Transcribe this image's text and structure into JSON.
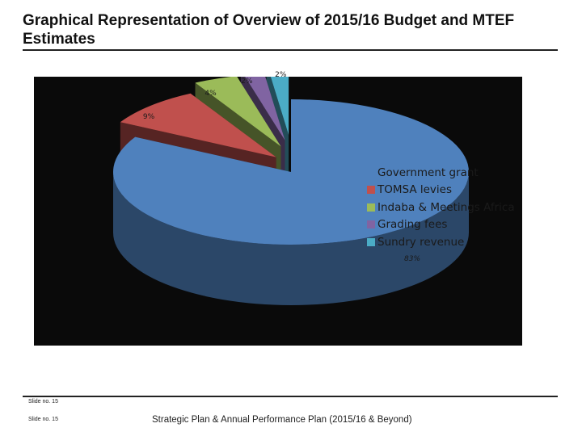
{
  "slide": {
    "title": "Graphical Representation of Overview of 2015/16 Budget and MTEF\nEstimates",
    "slide_number_top": "Slide no. 15",
    "slide_number_bottom": "Slide no. 15",
    "footer": "Strategic Plan & Annual Performance Plan (2015/16 & Beyond)"
  },
  "chart_data": {
    "type": "pie",
    "style": "3d-exploded",
    "title": "",
    "legend_position": "right",
    "slices": [
      {
        "label": "Government grant",
        "value": 83,
        "label_text": "83%",
        "color": "#4f81bd"
      },
      {
        "label": "TOMSA levies",
        "value": 9,
        "label_text": "9%",
        "color": "#c0504d"
      },
      {
        "label": "Indaba & Meetings Africa",
        "value": 4,
        "label_text": "4%",
        "color": "#9bbb59"
      },
      {
        "label": "Grading fees",
        "value": 2,
        "label_text": "2%",
        "color": "#8064a2"
      },
      {
        "label": "Sundry revenue",
        "value": 2,
        "label_text": "2%",
        "color": "#4bacc6"
      }
    ]
  }
}
